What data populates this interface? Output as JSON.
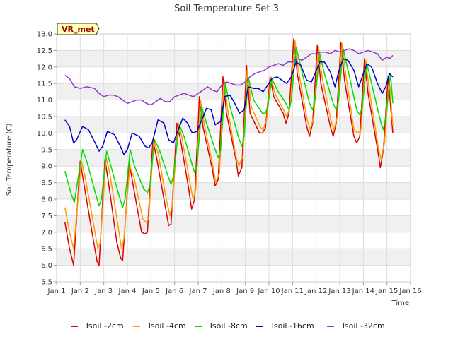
{
  "chart_data": {
    "type": "line",
    "title": "Soil Temperature Set 3",
    "xlabel": "Time",
    "ylabel": "Soil Temperature (C)",
    "badge": "VR_met",
    "xlim": [
      1,
      16
    ],
    "ylim": [
      5.5,
      13.0
    ],
    "xticks": [
      {
        "v": 1,
        "label": "Jan 1"
      },
      {
        "v": 2,
        "label": "Jan 2"
      },
      {
        "v": 3,
        "label": "Jan 3"
      },
      {
        "v": 4,
        "label": "Jan 4"
      },
      {
        "v": 5,
        "label": "Jan 5"
      },
      {
        "v": 6,
        "label": "Jan 6"
      },
      {
        "v": 7,
        "label": "Jan 7"
      },
      {
        "v": 8,
        "label": "Jan 8"
      },
      {
        "v": 9,
        "label": "Jan 9"
      },
      {
        "v": 10,
        "label": "Jan 10"
      },
      {
        "v": 11,
        "label": "Jan 11"
      },
      {
        "v": 12,
        "label": "Jan 12"
      },
      {
        "v": 13,
        "label": "Jan 13"
      },
      {
        "v": 14,
        "label": "Jan 14"
      },
      {
        "v": 15,
        "label": "Jan 15"
      },
      {
        "v": 16,
        "label": "Jan 16"
      }
    ],
    "yticks": [
      {
        "v": 5.5,
        "label": "5.5"
      },
      {
        "v": 6.0,
        "label": "6.0"
      },
      {
        "v": 6.5,
        "label": "6.5"
      },
      {
        "v": 7.0,
        "label": "7.0"
      },
      {
        "v": 7.5,
        "label": "7.5"
      },
      {
        "v": 8.0,
        "label": "8.0"
      },
      {
        "v": 8.5,
        "label": "8.5"
      },
      {
        "v": 9.0,
        "label": "9.0"
      },
      {
        "v": 9.5,
        "label": "9.5"
      },
      {
        "v": 10.0,
        "label": "10.0"
      },
      {
        "v": 10.5,
        "label": "10.5"
      },
      {
        "v": 11.0,
        "label": "11.0"
      },
      {
        "v": 11.5,
        "label": "11.5"
      },
      {
        "v": 12.0,
        "label": "12.0"
      },
      {
        "v": 12.5,
        "label": "12.5"
      },
      {
        "v": 13.0,
        "label": "13.0"
      }
    ],
    "series": [
      {
        "name": "Tsoil -2cm",
        "color": "#dd0000",
        "x": [
          1.35,
          1.55,
          1.72,
          2.0,
          2.15,
          2.5,
          2.72,
          2.8,
          3.05,
          3.2,
          3.55,
          3.72,
          3.8,
          4.08,
          4.25,
          4.6,
          4.75,
          4.85,
          5.08,
          5.25,
          5.6,
          5.75,
          5.85,
          6.1,
          6.25,
          6.6,
          6.72,
          6.85,
          7.05,
          7.2,
          7.6,
          7.72,
          7.85,
          8.05,
          8.2,
          8.6,
          8.7,
          8.85,
          9.05,
          9.2,
          9.6,
          9.72,
          9.85,
          10.05,
          10.2,
          10.6,
          10.72,
          10.85,
          11.05,
          11.2,
          11.6,
          11.72,
          11.85,
          12.05,
          12.2,
          12.6,
          12.72,
          12.85,
          13.05,
          13.2,
          13.6,
          13.72,
          13.85,
          14.05,
          14.2,
          14.65,
          14.72,
          14.85,
          15.05,
          15.25
        ],
        "y": [
          7.3,
          6.5,
          6.0,
          9.15,
          8.5,
          7.0,
          6.1,
          6.0,
          9.2,
          8.5,
          6.7,
          6.2,
          6.15,
          9.1,
          8.4,
          7.0,
          6.95,
          7.0,
          9.8,
          9.2,
          7.8,
          7.2,
          7.25,
          10.3,
          9.8,
          8.3,
          7.7,
          8.0,
          11.1,
          10.2,
          8.9,
          8.4,
          8.6,
          11.7,
          10.6,
          9.2,
          8.7,
          8.95,
          12.05,
          10.6,
          10.0,
          10.0,
          10.15,
          11.7,
          11.1,
          10.6,
          10.3,
          10.6,
          12.85,
          11.8,
          10.2,
          9.9,
          10.3,
          12.65,
          11.5,
          10.2,
          9.9,
          10.3,
          12.75,
          11.6,
          9.9,
          9.7,
          9.9,
          12.25,
          11.2,
          9.3,
          8.95,
          9.5,
          11.7,
          10.0
        ]
      },
      {
        "name": "Tsoil -4cm",
        "color": "#ff9900",
        "x": [
          1.35,
          1.55,
          1.72,
          2.05,
          2.2,
          2.55,
          2.75,
          2.85,
          3.1,
          3.25,
          3.6,
          3.75,
          3.85,
          4.1,
          4.3,
          4.65,
          4.8,
          4.9,
          5.12,
          5.3,
          5.65,
          5.8,
          5.9,
          6.15,
          6.3,
          6.65,
          6.78,
          6.9,
          7.1,
          7.25,
          7.62,
          7.75,
          7.9,
          8.1,
          8.25,
          8.6,
          8.72,
          8.9,
          9.08,
          9.25,
          9.62,
          9.75,
          9.9,
          10.08,
          10.25,
          10.62,
          10.75,
          10.9,
          11.1,
          11.25,
          11.62,
          11.75,
          11.9,
          12.1,
          12.25,
          12.62,
          12.75,
          12.9,
          13.1,
          13.25,
          13.6,
          13.75,
          13.9,
          14.1,
          14.25,
          14.65,
          14.75,
          14.9,
          15.1,
          15.25
        ],
        "y": [
          7.75,
          7.0,
          6.5,
          9.15,
          8.7,
          7.3,
          6.5,
          6.7,
          9.25,
          8.8,
          7.2,
          6.5,
          6.8,
          9.0,
          8.6,
          7.4,
          7.3,
          7.4,
          9.8,
          9.4,
          8.0,
          7.5,
          7.8,
          10.3,
          9.9,
          8.5,
          8.0,
          8.3,
          11.0,
          10.3,
          9.0,
          8.5,
          8.8,
          11.6,
          10.7,
          9.3,
          9.0,
          9.3,
          11.9,
          10.8,
          10.2,
          10.1,
          10.4,
          11.7,
          11.2,
          10.7,
          10.5,
          10.8,
          12.8,
          11.9,
          10.4,
          10.1,
          10.5,
          12.6,
          11.7,
          10.4,
          10.1,
          10.5,
          12.7,
          11.8,
          10.1,
          10.0,
          10.1,
          12.2,
          11.3,
          9.5,
          9.2,
          9.7,
          11.6,
          10.2
        ]
      },
      {
        "name": "Tsoil -8cm",
        "color": "#00dd00",
        "x": [
          1.35,
          1.6,
          1.75,
          2.1,
          2.3,
          2.6,
          2.8,
          2.9,
          3.12,
          3.3,
          3.65,
          3.8,
          3.9,
          4.12,
          4.3,
          4.7,
          4.85,
          4.95,
          5.15,
          5.35,
          5.72,
          5.85,
          5.95,
          6.2,
          6.4,
          6.72,
          6.85,
          6.95,
          7.15,
          7.35,
          7.72,
          7.85,
          7.95,
          8.15,
          8.35,
          8.72,
          8.85,
          8.95,
          9.12,
          9.35,
          9.72,
          9.85,
          9.95,
          10.12,
          10.35,
          10.72,
          10.85,
          10.95,
          11.15,
          11.35,
          11.72,
          11.85,
          11.95,
          12.15,
          12.35,
          12.72,
          12.85,
          12.95,
          13.15,
          13.35,
          13.72,
          13.85,
          13.95,
          14.15,
          14.35,
          14.75,
          14.85,
          14.95,
          15.15,
          15.25
        ],
        "y": [
          8.85,
          8.2,
          7.9,
          9.5,
          9.1,
          8.3,
          7.8,
          8.0,
          9.45,
          9.0,
          8.1,
          7.75,
          8.0,
          9.5,
          9.0,
          8.3,
          8.2,
          8.4,
          9.8,
          9.5,
          8.7,
          8.45,
          8.7,
          10.25,
          9.9,
          9.1,
          8.8,
          9.0,
          10.8,
          10.3,
          9.5,
          9.25,
          9.5,
          11.5,
          10.8,
          9.85,
          9.6,
          9.9,
          11.7,
          11.0,
          10.6,
          10.6,
          10.8,
          11.65,
          11.3,
          10.9,
          10.7,
          11.0,
          12.6,
          12.0,
          10.9,
          10.7,
          11.0,
          12.4,
          11.8,
          10.9,
          10.7,
          11.0,
          12.55,
          11.9,
          10.7,
          10.55,
          10.8,
          12.1,
          11.5,
          10.3,
          10.1,
          10.5,
          11.8,
          10.9
        ]
      },
      {
        "name": "Tsoil -16cm",
        "color": "#0000cc",
        "x": [
          1.35,
          1.55,
          1.72,
          1.85,
          2.1,
          2.35,
          2.6,
          2.8,
          2.95,
          3.15,
          3.45,
          3.7,
          3.85,
          4.0,
          4.2,
          4.5,
          4.75,
          4.9,
          5.05,
          5.3,
          5.55,
          5.75,
          5.95,
          6.1,
          6.35,
          6.55,
          6.75,
          6.95,
          7.1,
          7.35,
          7.55,
          7.72,
          7.95,
          8.12,
          8.35,
          8.55,
          8.75,
          8.95,
          9.12,
          9.35,
          9.55,
          9.75,
          9.95,
          10.12,
          10.35,
          10.55,
          10.75,
          10.95,
          11.15,
          11.35,
          11.6,
          11.8,
          11.95,
          12.15,
          12.35,
          12.6,
          12.8,
          12.95,
          13.15,
          13.35,
          13.6,
          13.8,
          13.95,
          14.15,
          14.35,
          14.6,
          14.8,
          14.95,
          15.1,
          15.25
        ],
        "y": [
          10.4,
          10.2,
          9.7,
          9.8,
          10.2,
          10.1,
          9.75,
          9.45,
          9.6,
          10.05,
          9.95,
          9.6,
          9.35,
          9.5,
          10.0,
          9.9,
          9.6,
          9.55,
          9.7,
          10.4,
          10.3,
          9.8,
          9.7,
          10.0,
          10.45,
          10.3,
          10.0,
          10.05,
          10.3,
          10.75,
          10.7,
          10.25,
          10.35,
          11.1,
          11.15,
          10.9,
          10.6,
          10.7,
          11.4,
          11.35,
          11.35,
          11.25,
          11.45,
          11.65,
          11.7,
          11.6,
          11.5,
          11.7,
          12.15,
          12.05,
          11.6,
          11.55,
          11.8,
          12.15,
          12.15,
          11.85,
          11.4,
          11.85,
          12.25,
          12.2,
          11.9,
          11.4,
          11.7,
          12.1,
          12.0,
          11.5,
          11.2,
          11.4,
          11.8,
          11.7
        ]
      },
      {
        "name": "Tsoil -32cm",
        "color": "#9933cc",
        "x": [
          1.35,
          1.55,
          1.75,
          2.0,
          2.3,
          2.6,
          2.8,
          3.0,
          3.2,
          3.4,
          3.6,
          3.8,
          4.0,
          4.2,
          4.4,
          4.6,
          4.8,
          5.0,
          5.2,
          5.4,
          5.6,
          5.8,
          6.0,
          6.2,
          6.4,
          6.6,
          6.8,
          7.0,
          7.2,
          7.4,
          7.6,
          7.8,
          8.0,
          8.2,
          8.4,
          8.6,
          8.8,
          9.0,
          9.2,
          9.4,
          9.6,
          9.8,
          10.0,
          10.2,
          10.4,
          10.6,
          10.8,
          11.0,
          11.2,
          11.4,
          11.6,
          11.8,
          12.0,
          12.2,
          12.4,
          12.6,
          12.8,
          13.0,
          13.2,
          13.4,
          13.6,
          13.8,
          14.0,
          14.2,
          14.4,
          14.6,
          14.8,
          15.0,
          15.1,
          15.25
        ],
        "y": [
          11.75,
          11.65,
          11.4,
          11.35,
          11.4,
          11.35,
          11.2,
          11.1,
          11.15,
          11.15,
          11.1,
          11.0,
          10.9,
          10.95,
          11.0,
          11.0,
          10.9,
          10.85,
          10.95,
          11.05,
          10.95,
          10.95,
          11.1,
          11.15,
          11.2,
          11.15,
          11.1,
          11.2,
          11.3,
          11.4,
          11.3,
          11.25,
          11.45,
          11.55,
          11.5,
          11.45,
          11.45,
          11.55,
          11.7,
          11.8,
          11.85,
          11.9,
          12.0,
          12.05,
          12.1,
          12.05,
          12.15,
          12.15,
          12.25,
          12.2,
          12.3,
          12.4,
          12.4,
          12.45,
          12.45,
          12.4,
          12.5,
          12.45,
          12.5,
          12.55,
          12.5,
          12.4,
          12.45,
          12.5,
          12.45,
          12.4,
          12.2,
          12.3,
          12.25,
          12.35
        ]
      }
    ]
  }
}
